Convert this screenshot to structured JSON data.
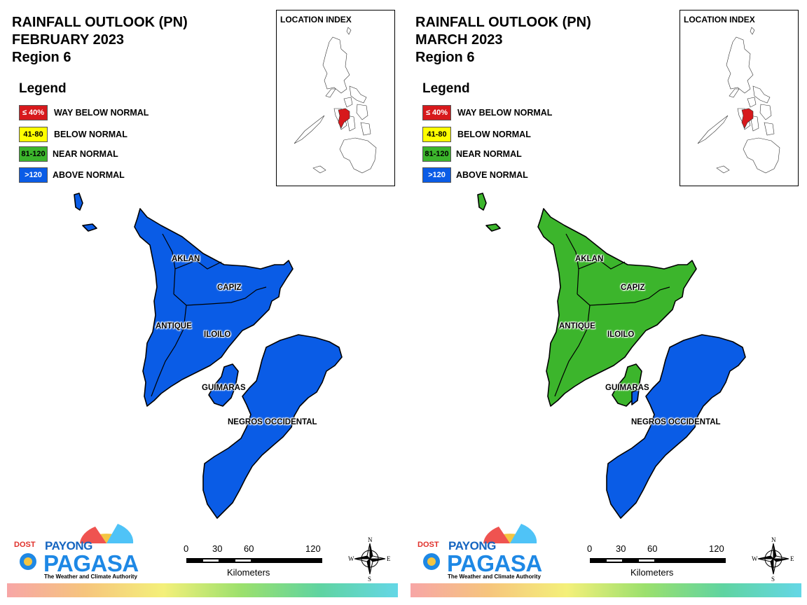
{
  "panels": [
    {
      "title_line1": "RAINFALL OUTLOOK (PN)",
      "title_line2": "FEBRUARY 2023",
      "title_line3": "Region 6",
      "legend_title": "Legend",
      "legend": [
        {
          "range": "≤ 40%",
          "label": "WAY BELOW NORMAL",
          "color": "#d7191c"
        },
        {
          "range": "41-80",
          "label": "BELOW NORMAL",
          "color": "#ffff00"
        },
        {
          "range": "81-120",
          "label": "NEAR NORMAL",
          "color": "#3cb52c"
        },
        {
          "range": ">120",
          "label": "ABOVE NORMAL",
          "color": "#0a5ce6"
        }
      ],
      "inset_title": "LOCATION INDEX",
      "provinces": {
        "aklan": "AKLAN",
        "capiz": "CAPIZ",
        "antique": "ANTIQUE",
        "iloilo": "ILOILO",
        "guimaras": "GUIMARAS",
        "negros": "NEGROS OCCIDENTAL"
      },
      "province_status": {
        "panay": "ABOVE NORMAL",
        "guimaras": "ABOVE NORMAL",
        "negros": "ABOVE NORMAL"
      },
      "scale": {
        "ticks": [
          "0",
          "30",
          "60",
          "120"
        ],
        "unit": "Kilometers"
      },
      "logo": {
        "dost": "DOST",
        "payong": "PAYONG",
        "pagasa": "PAGASA",
        "tagline": "The Weather and Climate Authority"
      },
      "compass": {
        "n": "N",
        "s": "S",
        "e": "E",
        "w": "W"
      }
    },
    {
      "title_line1": "RAINFALL OUTLOOK (PN)",
      "title_line2": "MARCH 2023",
      "title_line3": "Region 6",
      "legend_title": "Legend",
      "legend": [
        {
          "range": "≤ 40%",
          "label": "WAY BELOW NORMAL",
          "color": "#d7191c"
        },
        {
          "range": "41-80",
          "label": "BELOW NORMAL",
          "color": "#ffff00"
        },
        {
          "range": "81-120",
          "label": "NEAR NORMAL",
          "color": "#3cb52c"
        },
        {
          "range": ">120",
          "label": "ABOVE NORMAL",
          "color": "#0a5ce6"
        }
      ],
      "inset_title": "LOCATION INDEX",
      "provinces": {
        "aklan": "AKLAN",
        "capiz": "CAPIZ",
        "antique": "ANTIQUE",
        "iloilo": "ILOILO",
        "guimaras": "GUIMARAS",
        "negros": "NEGROS OCCIDENTAL"
      },
      "province_status": {
        "panay": "NEAR NORMAL",
        "guimaras": "NEAR NORMAL",
        "negros": "ABOVE NORMAL"
      },
      "scale": {
        "ticks": [
          "0",
          "30",
          "60",
          "120"
        ],
        "unit": "Kilometers"
      },
      "logo": {
        "dost": "DOST",
        "payong": "PAYONG",
        "pagasa": "PAGASA",
        "tagline": "The Weather and Climate Authority"
      },
      "compass": {
        "n": "N",
        "s": "S",
        "e": "E",
        "w": "W"
      }
    }
  ],
  "colors": {
    "way_below": "#d7191c",
    "below": "#ffff00",
    "near": "#3cb52c",
    "above": "#0a5ce6",
    "inset_highlight": "#d7191c"
  }
}
